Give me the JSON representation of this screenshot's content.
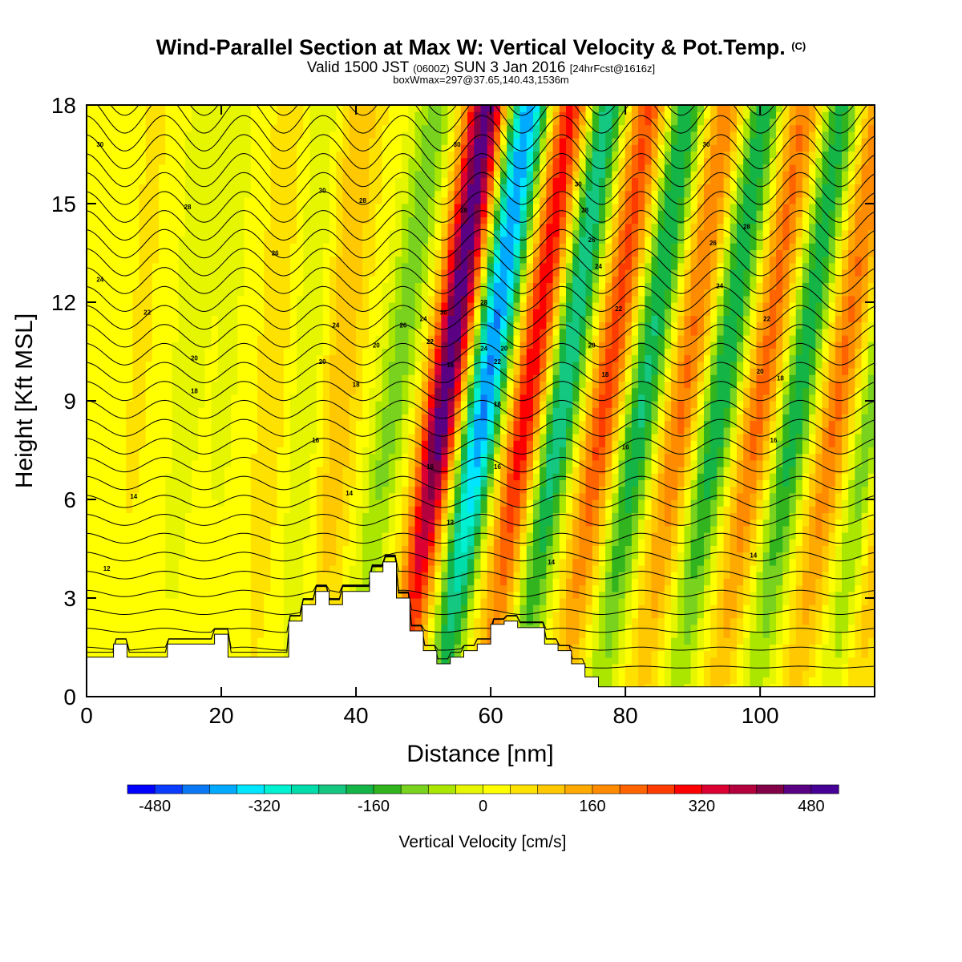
{
  "title": {
    "main": "Wind-Parallel Section at Max W: Vertical Velocity & Pot.Temp.",
    "copyright": "(C)",
    "valid_prefix": "Valid 1500 JST",
    "valid_utc": "(0600Z)",
    "valid_date": "SUN 3 Jan 2016",
    "forecast": "[24hrFcst@1616z]",
    "box_info": "boxWmax=297@37.65,140.43,1536m"
  },
  "chart_data": {
    "type": "heatmap",
    "xlabel": "Distance [nm]",
    "ylabel": "Height [Kft MSL]",
    "xlim": [
      0,
      117
    ],
    "ylim": [
      0,
      18
    ],
    "x_ticks": [
      0,
      20,
      40,
      60,
      80,
      100
    ],
    "y_ticks": [
      0,
      3,
      6,
      9,
      12,
      15,
      18
    ],
    "colorbar": {
      "label": "Vertical Velocity [cm/s]",
      "range": [
        -520,
        520
      ],
      "step": 40,
      "tick_values": [
        -480,
        -320,
        -160,
        0,
        160,
        320,
        480
      ],
      "colors": [
        "#0000ff",
        "#0a3cff",
        "#0a78f5",
        "#00aaff",
        "#00e6ff",
        "#00f0d2",
        "#00dcaa",
        "#14c882",
        "#14b446",
        "#32b41e",
        "#78d21e",
        "#aae600",
        "#e6f500",
        "#ffff00",
        "#ffe100",
        "#ffc800",
        "#ffaa00",
        "#ff8c00",
        "#ff6400",
        "#ff3c00",
        "#ff0000",
        "#dc0032",
        "#b4003c",
        "#820046",
        "#5a0082",
        "#460096"
      ]
    },
    "terrain_kft": {
      "x": [
        0,
        4,
        6,
        10,
        12,
        16,
        19,
        21,
        27,
        30,
        32,
        34,
        36,
        38,
        40,
        42,
        44,
        46,
        48,
        50,
        52,
        54,
        56,
        58,
        60,
        62,
        64,
        68,
        70,
        72,
        74,
        76,
        100,
        117
      ],
      "top": [
        1.2,
        1.6,
        1.2,
        1.2,
        1.6,
        1.6,
        1.9,
        1.2,
        1.2,
        2.3,
        2.8,
        3.2,
        2.8,
        3.2,
        3.2,
        3.8,
        4.1,
        3.0,
        2.0,
        1.4,
        1.0,
        1.2,
        1.4,
        1.6,
        2.2,
        2.3,
        2.1,
        1.6,
        1.4,
        1.0,
        0.6,
        0.3,
        0.3,
        0.3
      ]
    },
    "contour_labels": [
      {
        "x": 2,
        "y": 16.8,
        "text": "30"
      },
      {
        "x": 15,
        "y": 14.9,
        "text": "28"
      },
      {
        "x": 28,
        "y": 13.5,
        "text": "26"
      },
      {
        "x": 2,
        "y": 12.7,
        "text": "24"
      },
      {
        "x": 9,
        "y": 11.7,
        "text": "22"
      },
      {
        "x": 16,
        "y": 10.3,
        "text": "20"
      },
      {
        "x": 16,
        "y": 9.3,
        "text": "18"
      },
      {
        "x": 7,
        "y": 6.1,
        "text": "14"
      },
      {
        "x": 3,
        "y": 3.9,
        "text": "12"
      },
      {
        "x": 35,
        "y": 15.4,
        "text": "30"
      },
      {
        "x": 41,
        "y": 15.1,
        "text": "28"
      },
      {
        "x": 37,
        "y": 11.3,
        "text": "24"
      },
      {
        "x": 35,
        "y": 10.2,
        "text": "20"
      },
      {
        "x": 40,
        "y": 9.5,
        "text": "18"
      },
      {
        "x": 34,
        "y": 7.8,
        "text": "16"
      },
      {
        "x": 39,
        "y": 6.2,
        "text": "14"
      },
      {
        "x": 43,
        "y": 10.7,
        "text": "20"
      },
      {
        "x": 47,
        "y": 11.3,
        "text": "26"
      },
      {
        "x": 50,
        "y": 11.5,
        "text": "24"
      },
      {
        "x": 53,
        "y": 11.7,
        "text": "30"
      },
      {
        "x": 51,
        "y": 10.8,
        "text": "22"
      },
      {
        "x": 55,
        "y": 16.8,
        "text": "30"
      },
      {
        "x": 56,
        "y": 14.8,
        "text": "28"
      },
      {
        "x": 54,
        "y": 10.1,
        "text": "16"
      },
      {
        "x": 51,
        "y": 7.0,
        "text": "16"
      },
      {
        "x": 54,
        "y": 5.3,
        "text": "12"
      },
      {
        "x": 59,
        "y": 12.0,
        "text": "28"
      },
      {
        "x": 59,
        "y": 10.6,
        "text": "24"
      },
      {
        "x": 62,
        "y": 10.6,
        "text": "20"
      },
      {
        "x": 61,
        "y": 10.2,
        "text": "22"
      },
      {
        "x": 61,
        "y": 8.9,
        "text": "18"
      },
      {
        "x": 61,
        "y": 7.0,
        "text": "16"
      },
      {
        "x": 73,
        "y": 15.6,
        "text": "30"
      },
      {
        "x": 74,
        "y": 14.8,
        "text": "28"
      },
      {
        "x": 75,
        "y": 13.9,
        "text": "26"
      },
      {
        "x": 76,
        "y": 13.1,
        "text": "24"
      },
      {
        "x": 79,
        "y": 11.8,
        "text": "22"
      },
      {
        "x": 75,
        "y": 10.7,
        "text": "20"
      },
      {
        "x": 77,
        "y": 9.8,
        "text": "18"
      },
      {
        "x": 80,
        "y": 7.6,
        "text": "16"
      },
      {
        "x": 69,
        "y": 4.1,
        "text": "14"
      },
      {
        "x": 92,
        "y": 16.8,
        "text": "30"
      },
      {
        "x": 98,
        "y": 14.3,
        "text": "28"
      },
      {
        "x": 93,
        "y": 13.8,
        "text": "26"
      },
      {
        "x": 94,
        "y": 12.5,
        "text": "24"
      },
      {
        "x": 101,
        "y": 11.5,
        "text": "22"
      },
      {
        "x": 100,
        "y": 9.9,
        "text": "20"
      },
      {
        "x": 103,
        "y": 9.7,
        "text": "18"
      },
      {
        "x": 102,
        "y": 7.8,
        "text": "16"
      },
      {
        "x": 99,
        "y": 4.3,
        "text": "14"
      }
    ]
  }
}
